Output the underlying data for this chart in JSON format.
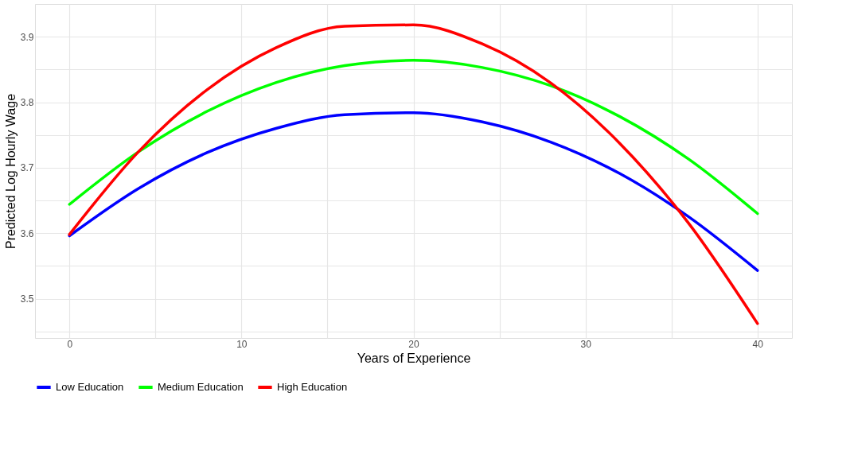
{
  "chart_data": {
    "type": "line",
    "xlabel": "Years of Experience",
    "ylabel": "Predicted Log Hourly Wage",
    "x": [
      0,
      4,
      8,
      12,
      16,
      20,
      24,
      28,
      32,
      36,
      40
    ],
    "series": [
      {
        "name": "Low Education",
        "color": "#0000ff",
        "values": [
          3.596,
          3.668,
          3.723,
          3.76,
          3.781,
          3.784,
          3.77,
          3.739,
          3.691,
          3.625,
          3.543
        ]
      },
      {
        "name": "Medium Education",
        "color": "#00ff00",
        "values": [
          3.644,
          3.724,
          3.786,
          3.83,
          3.856,
          3.864,
          3.853,
          3.825,
          3.778,
          3.713,
          3.63
        ]
      },
      {
        "name": "High Education",
        "color": "#ff0000",
        "values": [
          3.598,
          3.724,
          3.819,
          3.883,
          3.916,
          3.918,
          3.889,
          3.829,
          3.737,
          3.615,
          3.462
        ]
      }
    ],
    "xlim": [
      -2,
      42
    ],
    "ylim": [
      3.44,
      3.95
    ],
    "xticks": [
      0,
      {
        "value": 5,
        "label": null
      },
      10,
      {
        "value": 15,
        "label": null
      },
      20,
      {
        "value": 25,
        "label": null
      },
      30,
      {
        "value": 35,
        "label": null
      },
      40
    ],
    "yticks": [
      {
        "value": 3.45,
        "label": null
      },
      3.5,
      {
        "value": 3.55,
        "label": null
      },
      3.6,
      {
        "value": 3.65,
        "label": null
      },
      3.7,
      {
        "value": 3.75,
        "label": null
      },
      3.8,
      {
        "value": 3.85,
        "label": null
      },
      3.9
    ],
    "grid": true,
    "legend": "bottom",
    "marker": "none",
    "line_style": "solid"
  }
}
